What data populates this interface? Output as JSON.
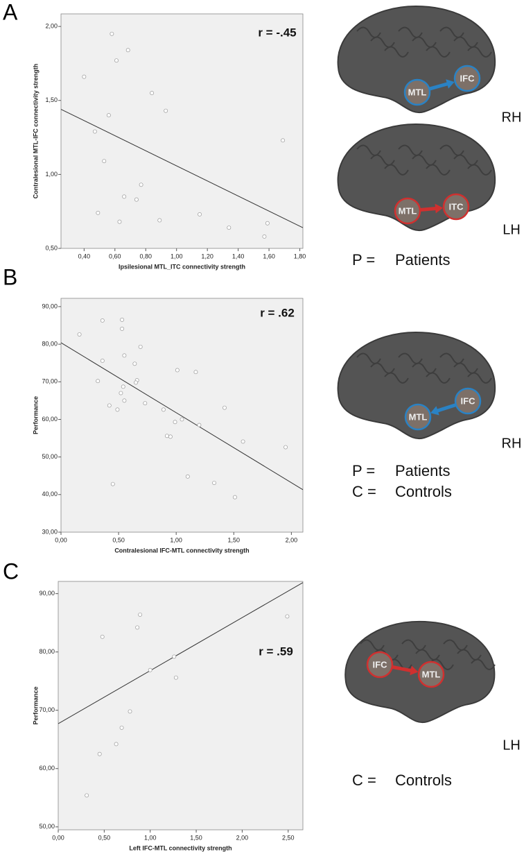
{
  "chart_data": [
    {
      "type": "scatter",
      "panel_label": "A",
      "annotation": "r = -.45",
      "x_label": "Ipsilesional MTL_ITC connectivity strength",
      "y_label": "Contralesional MTL-IFC connectivity strength",
      "x": [
        0.58,
        0.685,
        0.61,
        0.4,
        0.84,
        0.56,
        0.93,
        0.47,
        1.69,
        0.53,
        0.77,
        0.66,
        0.74,
        0.49,
        1.15,
        0.89,
        0.63,
        1.34,
        1.59,
        1.57
      ],
      "values": [
        1.95,
        1.84,
        1.77,
        1.66,
        1.55,
        1.4,
        1.43,
        1.29,
        1.23,
        1.09,
        0.93,
        0.85,
        0.83,
        0.74,
        0.73,
        0.69,
        0.68,
        0.64,
        0.67,
        0.58
      ],
      "fit_line": {
        "x": [
          0.25,
          1.82
        ],
        "y": [
          1.44,
          0.64
        ]
      },
      "xlim": [
        0.25,
        1.82
      ],
      "ylim": [
        0.5,
        2.085
      ],
      "xticks": [
        {
          "value": 0.4,
          "label": "0,40"
        },
        {
          "value": 0.6,
          "label": "0,60"
        },
        {
          "value": 0.8,
          "label": "0,80"
        },
        {
          "value": 1.0,
          "label": "1,00"
        },
        {
          "value": 1.2,
          "label": "1,20"
        },
        {
          "value": 1.4,
          "label": "1,40"
        },
        {
          "value": 1.6,
          "label": "1,60"
        },
        {
          "value": 1.8,
          "label": "1,80"
        }
      ],
      "yticks": [
        {
          "value": 0.5,
          "label": "0,50"
        },
        {
          "value": 1.0,
          "label": "1,00"
        },
        {
          "value": 1.5,
          "label": "1,50"
        },
        {
          "value": 2.0,
          "label": "2,00"
        }
      ],
      "brains": [
        {
          "hemisphere": "RH",
          "regions": [
            "MTL",
            "IFC"
          ],
          "color": "#2a82c4"
        },
        {
          "hemisphere": "LH",
          "regions": [
            "MTL",
            "ITC"
          ],
          "color": "#d0302f"
        }
      ],
      "legend": [
        {
          "key": "P =",
          "text": "Patients"
        }
      ]
    },
    {
      "type": "scatter",
      "panel_label": "B",
      "annotation": "r = .62",
      "x_label": "Contralesional IFC-MTL connectivity strength",
      "y_label": "Performance",
      "x": [
        0.16,
        0.36,
        0.53,
        0.53,
        0.36,
        0.55,
        0.69,
        0.64,
        1.01,
        1.17,
        0.32,
        0.66,
        0.65,
        0.54,
        0.52,
        0.55,
        0.73,
        0.42,
        1.42,
        0.49,
        0.89,
        1.05,
        0.99,
        0.92,
        0.95,
        1.2,
        1.58,
        1.95,
        1.1,
        0.45,
        1.33,
        1.51
      ],
      "values": [
        82.6,
        86.3,
        86.5,
        84.1,
        75.6,
        77.0,
        79.3,
        74.8,
        73.1,
        72.6,
        70.2,
        70.4,
        69.8,
        68.7,
        67.0,
        65.0,
        64.3,
        63.7,
        63.1,
        62.6,
        62.6,
        60.0,
        59.3,
        55.6,
        55.4,
        58.5,
        54.1,
        52.6,
        44.8,
        42.8,
        43.1,
        39.3
      ],
      "fit_line": {
        "x": [
          0,
          2.1
        ],
        "y": [
          80.4,
          41.3
        ]
      },
      "xlim": [
        0,
        2.1
      ],
      "ylim": [
        30,
        92.2
      ],
      "xticks": [
        {
          "value": 0,
          "label": "0,00"
        },
        {
          "value": 0.5,
          "label": "0,50"
        },
        {
          "value": 1.0,
          "label": "1,00"
        },
        {
          "value": 1.5,
          "label": "1,50"
        },
        {
          "value": 2.0,
          "label": "2,00"
        }
      ],
      "yticks": [
        {
          "value": 30,
          "label": "30,00"
        },
        {
          "value": 40,
          "label": "40,00"
        },
        {
          "value": 50,
          "label": "50,00"
        },
        {
          "value": 60,
          "label": "60,00"
        },
        {
          "value": 70,
          "label": "70,00"
        },
        {
          "value": 80,
          "label": "80,00"
        },
        {
          "value": 90,
          "label": "90,00"
        }
      ],
      "brains": [
        {
          "hemisphere": "RH",
          "regions": [
            "IFC",
            "MTL"
          ],
          "color": "#2a82c4"
        }
      ],
      "legend": [
        {
          "key": "P =",
          "text": "Patients"
        },
        {
          "key": "C =",
          "text": "Controls"
        }
      ]
    },
    {
      "type": "scatter",
      "panel_label": "C",
      "annotation": "r = .59",
      "x_label": "Left IFC-MTL connectivity strength",
      "y_label": "Performance",
      "x": [
        0.48,
        0.89,
        0.86,
        2.49,
        1.26,
        1.0,
        1.28,
        0.78,
        0.69,
        0.63,
        0.45,
        0.31
      ],
      "values": [
        82.6,
        86.4,
        84.2,
        86.1,
        79.2,
        76.9,
        75.6,
        69.8,
        67.0,
        64.2,
        62.5,
        55.4
      ],
      "fit_line": {
        "x": [
          0,
          2.66
        ],
        "y": [
          67.7,
          91.9
        ]
      },
      "xlim": [
        0,
        2.66
      ],
      "ylim": [
        49.5,
        92.1
      ],
      "xticks": [
        {
          "value": 0,
          "label": "0,00"
        },
        {
          "value": 0.5,
          "label": "0,50"
        },
        {
          "value": 1.0,
          "label": "1,00"
        },
        {
          "value": 1.5,
          "label": "1,50"
        },
        {
          "value": 2.0,
          "label": "2,00"
        },
        {
          "value": 2.5,
          "label": "2,50"
        }
      ],
      "yticks": [
        {
          "value": 50,
          "label": "50,00"
        },
        {
          "value": 60,
          "label": "60,00"
        },
        {
          "value": 70,
          "label": "70,00"
        },
        {
          "value": 80,
          "label": "80,00"
        },
        {
          "value": 90,
          "label": "90,00"
        }
      ],
      "brains": [
        {
          "hemisphere": "LH",
          "regions": [
            "IFC",
            "MTL"
          ],
          "color": "#d0302f"
        }
      ],
      "legend": [
        {
          "key": "C =",
          "text": "Controls"
        }
      ]
    }
  ]
}
